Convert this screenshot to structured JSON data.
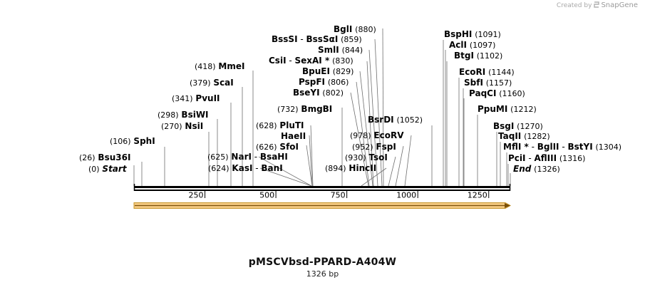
{
  "watermark": {
    "prefix": "Created by",
    "brand": "SnapGene"
  },
  "map": {
    "title": "pMSCVbsd-PPARD-A404W",
    "length_label": "1326 bp",
    "length_bp": 1326,
    "ruler_ticks": [
      {
        "bp": 250,
        "label": "250"
      },
      {
        "bp": 500,
        "label": "500"
      },
      {
        "bp": 750,
        "label": "750"
      },
      {
        "bp": 1000,
        "label": "1000"
      },
      {
        "bp": 1250,
        "label": "1250"
      }
    ],
    "feature_color": "#f3c981",
    "labels": [
      {
        "pos": "(0)",
        "names": [
          {
            "t": "Start",
            "i": true
          }
        ]
      },
      {
        "pos": "(26)",
        "names": [
          {
            "t": "Bsu36I"
          }
        ]
      },
      {
        "pos": "(106)",
        "names": [
          {
            "t": "SphI"
          }
        ]
      },
      {
        "pos": "(270)",
        "names": [
          {
            "t": "NsiI"
          }
        ]
      },
      {
        "pos": "(298)",
        "names": [
          {
            "t": "BsiWI"
          }
        ]
      },
      {
        "pos": "(341)",
        "names": [
          {
            "t": "PvuII"
          }
        ]
      },
      {
        "pos": "(379)",
        "names": [
          {
            "t": "ScaI"
          }
        ]
      },
      {
        "pos": "(418)",
        "names": [
          {
            "t": "MmeI"
          }
        ]
      },
      {
        "pos": "(624)",
        "names": [
          {
            "t": "KasI"
          },
          {
            "t": "BanI"
          }
        ]
      },
      {
        "pos": "(625)",
        "names": [
          {
            "t": "NarI"
          },
          {
            "t": "BsaHI"
          }
        ]
      },
      {
        "pos": "(626)",
        "names": [
          {
            "t": "SfoI"
          }
        ]
      },
      {
        "names": [
          {
            "t": "HaeII"
          }
        ]
      },
      {
        "pos": "(628)",
        "names": [
          {
            "t": "PluTI"
          }
        ]
      },
      {
        "pos": "(732)",
        "names": [
          {
            "t": "BmgBI"
          }
        ]
      },
      {
        "pos": "(894)",
        "names": [
          {
            "t": "HincII"
          }
        ]
      },
      {
        "pos": "(930)",
        "names": [
          {
            "t": "TsoI"
          }
        ]
      },
      {
        "pos": "(952)",
        "names": [
          {
            "t": "FspI"
          }
        ]
      },
      {
        "pos": "(978)",
        "names": [
          {
            "t": "EcoRV"
          }
        ]
      },
      {
        "pos": "(1052)",
        "names": [
          {
            "t": "BsrDI"
          }
        ]
      },
      {
        "pos": "(802)",
        "names": [
          {
            "t": "BseYI"
          }
        ]
      },
      {
        "pos": "(806)",
        "names": [
          {
            "t": "PspFI"
          }
        ]
      },
      {
        "pos": "(829)",
        "names": [
          {
            "t": "BpuEI"
          }
        ]
      },
      {
        "pos": "(830)",
        "names": [
          {
            "t": "CsiI"
          },
          {
            "t": "SexAI *"
          }
        ]
      },
      {
        "pos": "(844)",
        "names": [
          {
            "t": "SmlI"
          }
        ]
      },
      {
        "pos": "(859)",
        "names": [
          {
            "t": "BssSI"
          },
          {
            "t": "BssSαI"
          }
        ]
      },
      {
        "pos": "(880)",
        "names": [
          {
            "t": "BglI"
          }
        ]
      },
      {
        "pos": "(1091)",
        "names": [
          {
            "t": "BspHI"
          }
        ]
      },
      {
        "pos": "(1097)",
        "names": [
          {
            "t": "AclI"
          }
        ]
      },
      {
        "pos": "(1102)",
        "names": [
          {
            "t": "BtgI"
          }
        ]
      },
      {
        "pos": "(1144)",
        "names": [
          {
            "t": "EcoRI"
          }
        ]
      },
      {
        "pos": "(1157)",
        "names": [
          {
            "t": "SbfI"
          }
        ]
      },
      {
        "pos": "(1160)",
        "names": [
          {
            "t": "PaqCI"
          }
        ]
      },
      {
        "pos": "(1212)",
        "names": [
          {
            "t": "PpuMI"
          }
        ]
      },
      {
        "pos": "(1270)",
        "names": [
          {
            "t": "BsgI"
          }
        ]
      },
      {
        "pos": "(1282)",
        "names": [
          {
            "t": "TaqII"
          }
        ]
      },
      {
        "pos": "(1304)",
        "names": [
          {
            "t": "MflI *"
          },
          {
            "t": "BglII"
          },
          {
            "t": "BstYI"
          }
        ]
      },
      {
        "pos": "(1316)",
        "names": [
          {
            "t": "PciI"
          },
          {
            "t": "AflIII"
          }
        ]
      },
      {
        "pos": "(1326)",
        "names": [
          {
            "t": "End",
            "i": true
          }
        ]
      }
    ]
  }
}
